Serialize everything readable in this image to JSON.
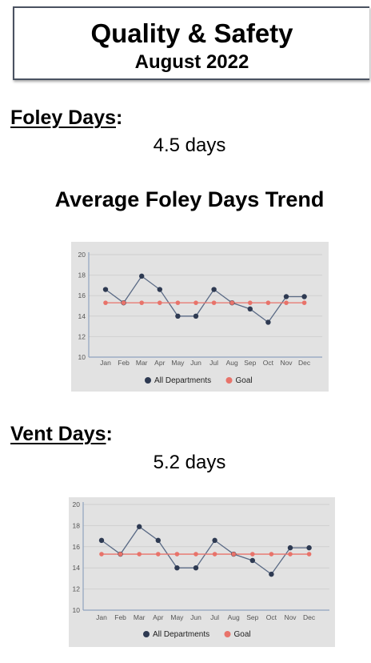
{
  "header": {
    "title": "Quality & Safety",
    "subtitle": "August 2022"
  },
  "foley": {
    "label": "Foley Days",
    "colon": ":",
    "value": "4.5 days",
    "trend_title": "Average Foley Days Trend"
  },
  "vent": {
    "label": "Vent Days",
    "colon": ":",
    "value": "5.2 days"
  },
  "colors": {
    "all_departments": "#2e3a52",
    "goal": "#e8736a",
    "chart_bg": "#e2e2e2",
    "grid": "#cfcfcf",
    "axis": "#8fa3bf"
  },
  "chart_data": [
    {
      "type": "line",
      "title": "Average Foley Days Trend",
      "categories": [
        "Jan",
        "Feb",
        "Mar",
        "Apr",
        "May",
        "Jun",
        "Jul",
        "Aug",
        "Sep",
        "Oct",
        "Nov",
        "Dec"
      ],
      "series": [
        {
          "name": "All Departments",
          "values": [
            16.6,
            15.3,
            17.9,
            16.6,
            14.0,
            14.0,
            16.6,
            15.3,
            14.7,
            13.4,
            15.9,
            15.9
          ]
        },
        {
          "name": "Goal",
          "values": [
            15.3,
            15.3,
            15.3,
            15.3,
            15.3,
            15.3,
            15.3,
            15.3,
            15.3,
            15.3,
            15.3,
            15.3
          ]
        }
      ],
      "yticks": [
        "10",
        "12",
        "14",
        "16",
        "18",
        "20"
      ],
      "ylim": [
        10,
        20
      ],
      "grid": true,
      "legend": "bottom"
    },
    {
      "type": "line",
      "title": "",
      "categories": [
        "Jan",
        "Feb",
        "Mar",
        "Apr",
        "May",
        "Jun",
        "Jul",
        "Aug",
        "Sep",
        "Oct",
        "Nov",
        "Dec"
      ],
      "series": [
        {
          "name": "All Departments",
          "values": [
            16.6,
            15.3,
            17.9,
            16.6,
            14.0,
            14.0,
            16.6,
            15.3,
            14.7,
            13.4,
            15.9,
            15.9
          ]
        },
        {
          "name": "Goal",
          "values": [
            15.3,
            15.3,
            15.3,
            15.3,
            15.3,
            15.3,
            15.3,
            15.3,
            15.3,
            15.3,
            15.3,
            15.3
          ]
        }
      ],
      "yticks": [
        "10",
        "12",
        "14",
        "16",
        "18",
        "20"
      ],
      "ylim": [
        10,
        20
      ],
      "grid": true,
      "legend": "bottom"
    }
  ]
}
